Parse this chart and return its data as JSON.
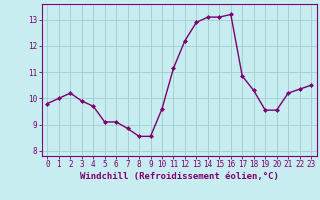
{
  "x": [
    0,
    1,
    2,
    3,
    4,
    5,
    6,
    7,
    8,
    9,
    10,
    11,
    12,
    13,
    14,
    15,
    16,
    17,
    18,
    19,
    20,
    21,
    22,
    23
  ],
  "y": [
    9.8,
    10.0,
    10.2,
    9.9,
    9.7,
    9.1,
    9.1,
    8.85,
    8.55,
    8.55,
    9.6,
    11.15,
    12.2,
    12.9,
    13.1,
    13.1,
    13.2,
    10.85,
    10.3,
    9.55,
    9.55,
    10.2,
    10.35,
    10.5
  ],
  "line_color": "#7B0070",
  "marker": "D",
  "marker_size": 2.0,
  "bg_color": "#C8EDF0",
  "grid_color": "#A0CDD0",
  "xlabel": "Windchill (Refroidissement éolien,°C)",
  "xlabel_fontsize": 6.5,
  "ylim": [
    7.8,
    13.6
  ],
  "yticks": [
    8,
    9,
    10,
    11,
    12,
    13
  ],
  "ytick_labels": [
    "8",
    "9",
    "10",
    "11",
    "12",
    "13"
  ],
  "xticks": [
    0,
    1,
    2,
    3,
    4,
    5,
    6,
    7,
    8,
    9,
    10,
    11,
    12,
    13,
    14,
    15,
    16,
    17,
    18,
    19,
    20,
    21,
    22,
    23
  ],
  "tick_fontsize": 5.5,
  "line_width": 1.0,
  "spine_color": "#7B0070"
}
